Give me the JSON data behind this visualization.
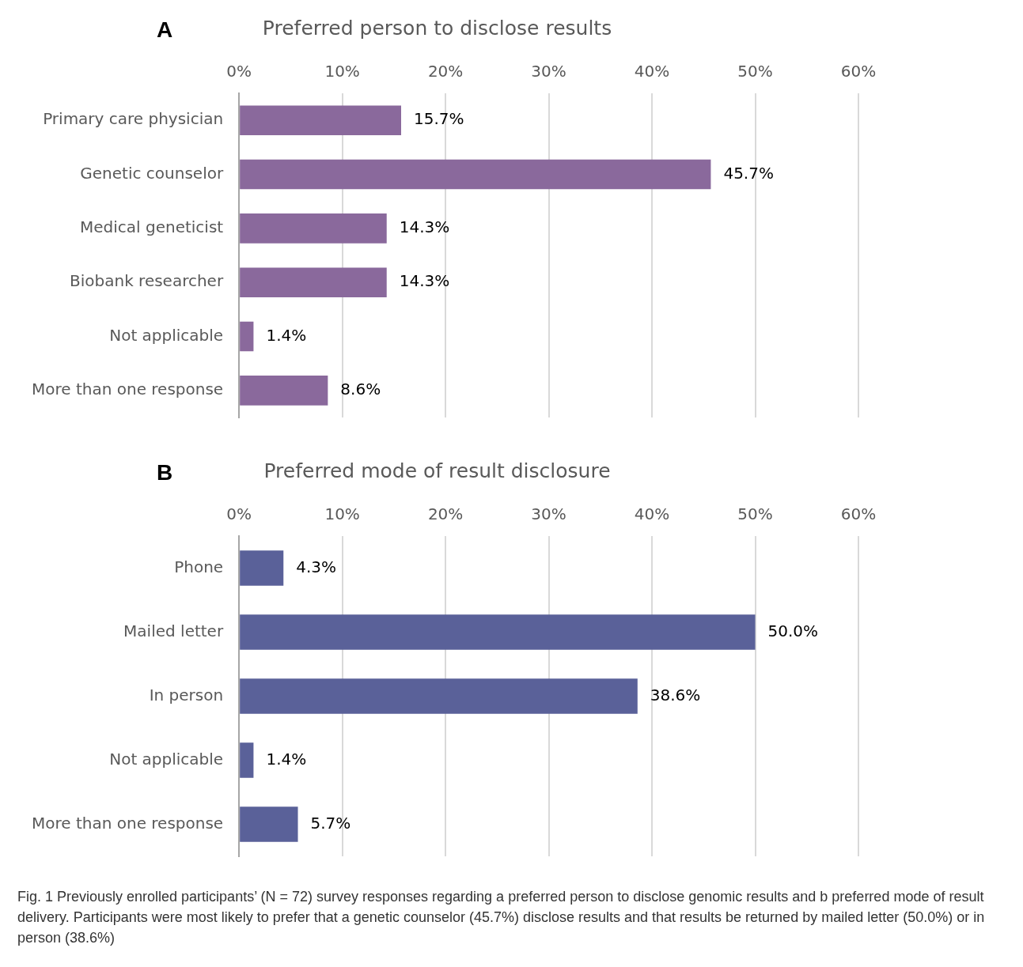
{
  "chart_data": [
    {
      "type": "bar",
      "orientation": "horizontal",
      "title": "Preferred person to disclose results",
      "annotations": [
        "A"
      ],
      "categories": [
        "Primary care physician",
        "Genetic counselor",
        "Medical geneticist",
        "Biobank researcher",
        "Not applicable",
        "More than one response"
      ],
      "values": [
        15.7,
        45.7,
        14.3,
        14.3,
        1.4,
        8.6
      ],
      "color": "#8a699c",
      "value_labels": [
        "15.7%",
        "45.7%",
        "14.3%",
        "14.3%",
        "1.4%",
        "8.6%"
      ],
      "xlim": [
        0,
        60
      ],
      "xticks": [
        {
          "value": 0,
          "label": "0%"
        },
        {
          "value": 10,
          "label": "10%"
        },
        {
          "value": 20,
          "label": "20%"
        },
        {
          "value": 30,
          "label": "30%"
        },
        {
          "value": 40,
          "label": "40%"
        },
        {
          "value": 50,
          "label": "50%"
        },
        {
          "value": 60,
          "label": "60%"
        }
      ],
      "grid": "x",
      "legend": false
    },
    {
      "type": "bar",
      "orientation": "horizontal",
      "title": "Preferred mode of result disclosure",
      "annotations": [
        "B",
        "Fig. 1 Previously enrolled participants’ (N = 72) survey responses regarding a preferred person to disclose genomic results and b preferred mode of result delivery. Participants were most likely to prefer that a genetic counselor (45.7%) disclose results and that results be returned by mailed letter (50.0%) or in person (38.6%)"
      ],
      "categories": [
        "Phone",
        "Mailed letter",
        "In person",
        "Not applicable",
        "More than one response"
      ],
      "values": [
        4.3,
        50.0,
        38.6,
        1.4,
        5.7
      ],
      "color": "#5a6199",
      "value_labels": [
        "4.3%",
        "50.0%",
        "38.6%",
        "1.4%",
        "5.7%"
      ],
      "xlim": [
        0,
        60
      ],
      "xticks": [
        {
          "value": 0,
          "label": "0%"
        },
        {
          "value": 10,
          "label": "10%"
        },
        {
          "value": 20,
          "label": "20%"
        },
        {
          "value": 30,
          "label": "30%"
        },
        {
          "value": 40,
          "label": "40%"
        },
        {
          "value": 50,
          "label": "50%"
        },
        {
          "value": 60,
          "label": "60%"
        }
      ],
      "grid": "x",
      "legend": false
    }
  ]
}
